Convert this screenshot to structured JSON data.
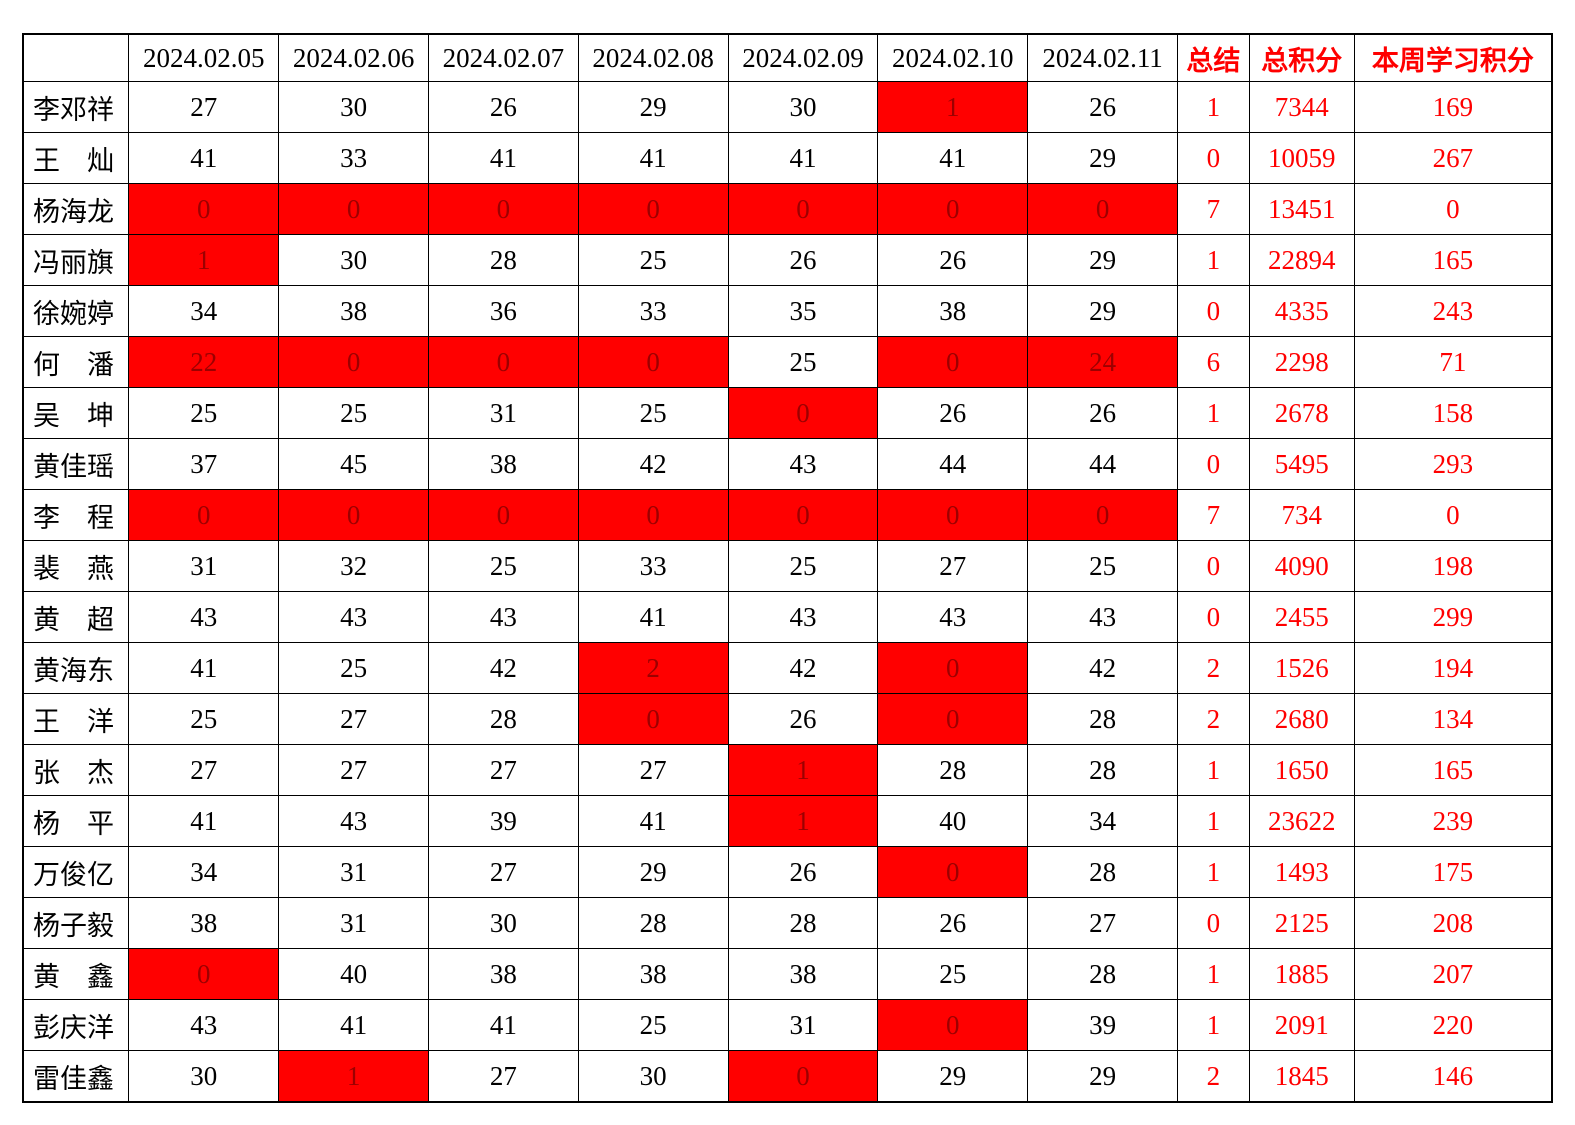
{
  "colors": {
    "highlight_background": "#ff0000",
    "highlight_text": "#9c0000",
    "accent_text": "#ff0000",
    "grid_line": "#000000",
    "page_background": "#ffffff"
  },
  "table": {
    "corner_label": "",
    "date_columns": [
      "2024.02.05",
      "2024.02.06",
      "2024.02.07",
      "2024.02.08",
      "2024.02.09",
      "2024.02.10",
      "2024.02.11"
    ],
    "summary_columns": [
      "总结",
      "总积分",
      "本周学习积分"
    ],
    "rows": [
      {
        "name": "李邓祥",
        "days": [
          {
            "v": "27"
          },
          {
            "v": "30"
          },
          {
            "v": "26"
          },
          {
            "v": "29"
          },
          {
            "v": "30"
          },
          {
            "v": "1",
            "red": true
          },
          {
            "v": "26"
          }
        ],
        "summary": "1",
        "total": "7344",
        "week": "169"
      },
      {
        "name": "王　灿",
        "days": [
          {
            "v": "41"
          },
          {
            "v": "33"
          },
          {
            "v": "41"
          },
          {
            "v": "41"
          },
          {
            "v": "41"
          },
          {
            "v": "41"
          },
          {
            "v": "29"
          }
        ],
        "summary": "0",
        "total": "10059",
        "week": "267"
      },
      {
        "name": "杨海龙",
        "days": [
          {
            "v": "0",
            "red": true
          },
          {
            "v": "0",
            "red": true
          },
          {
            "v": "0",
            "red": true
          },
          {
            "v": "0",
            "red": true
          },
          {
            "v": "0",
            "red": true
          },
          {
            "v": "0",
            "red": true
          },
          {
            "v": "0",
            "red": true
          }
        ],
        "summary": "7",
        "total": "13451",
        "week": "0"
      },
      {
        "name": "冯丽旗",
        "days": [
          {
            "v": "1",
            "red": true
          },
          {
            "v": "30"
          },
          {
            "v": "28"
          },
          {
            "v": "25"
          },
          {
            "v": "26"
          },
          {
            "v": "26"
          },
          {
            "v": "29"
          }
        ],
        "summary": "1",
        "total": "22894",
        "week": "165"
      },
      {
        "name": "徐婉婷",
        "days": [
          {
            "v": "34"
          },
          {
            "v": "38"
          },
          {
            "v": "36"
          },
          {
            "v": "33"
          },
          {
            "v": "35"
          },
          {
            "v": "38"
          },
          {
            "v": "29"
          }
        ],
        "summary": "0",
        "total": "4335",
        "week": "243"
      },
      {
        "name": "何　潘",
        "days": [
          {
            "v": "22",
            "red": true
          },
          {
            "v": "0",
            "red": true
          },
          {
            "v": "0",
            "red": true
          },
          {
            "v": "0",
            "red": true
          },
          {
            "v": "25"
          },
          {
            "v": "0",
            "red": true
          },
          {
            "v": "24",
            "red": true
          }
        ],
        "summary": "6",
        "total": "2298",
        "week": "71"
      },
      {
        "name": "吴　坤",
        "days": [
          {
            "v": "25"
          },
          {
            "v": "25"
          },
          {
            "v": "31"
          },
          {
            "v": "25"
          },
          {
            "v": "0",
            "red": true
          },
          {
            "v": "26"
          },
          {
            "v": "26"
          }
        ],
        "summary": "1",
        "total": "2678",
        "week": "158"
      },
      {
        "name": "黄佳瑶",
        "days": [
          {
            "v": "37"
          },
          {
            "v": "45"
          },
          {
            "v": "38"
          },
          {
            "v": "42"
          },
          {
            "v": "43"
          },
          {
            "v": "44"
          },
          {
            "v": "44"
          }
        ],
        "summary": "0",
        "total": "5495",
        "week": "293"
      },
      {
        "name": "李　程",
        "days": [
          {
            "v": "0",
            "red": true
          },
          {
            "v": "0",
            "red": true
          },
          {
            "v": "0",
            "red": true
          },
          {
            "v": "0",
            "red": true
          },
          {
            "v": "0",
            "red": true
          },
          {
            "v": "0",
            "red": true
          },
          {
            "v": "0",
            "red": true
          }
        ],
        "summary": "7",
        "total": "734",
        "week": "0"
      },
      {
        "name": "裴　燕",
        "days": [
          {
            "v": "31"
          },
          {
            "v": "32"
          },
          {
            "v": "25"
          },
          {
            "v": "33"
          },
          {
            "v": "25"
          },
          {
            "v": "27"
          },
          {
            "v": "25"
          }
        ],
        "summary": "0",
        "total": "4090",
        "week": "198"
      },
      {
        "name": "黄　超",
        "days": [
          {
            "v": "43"
          },
          {
            "v": "43"
          },
          {
            "v": "43"
          },
          {
            "v": "41"
          },
          {
            "v": "43"
          },
          {
            "v": "43"
          },
          {
            "v": "43"
          }
        ],
        "summary": "0",
        "total": "2455",
        "week": "299"
      },
      {
        "name": "黄海东",
        "days": [
          {
            "v": "41"
          },
          {
            "v": "25"
          },
          {
            "v": "42"
          },
          {
            "v": "2",
            "red": true
          },
          {
            "v": "42"
          },
          {
            "v": "0",
            "red": true
          },
          {
            "v": "42"
          }
        ],
        "summary": "2",
        "total": "1526",
        "week": "194"
      },
      {
        "name": "王　洋",
        "days": [
          {
            "v": "25"
          },
          {
            "v": "27"
          },
          {
            "v": "28"
          },
          {
            "v": "0",
            "red": true
          },
          {
            "v": "26"
          },
          {
            "v": "0",
            "red": true
          },
          {
            "v": "28"
          }
        ],
        "summary": "2",
        "total": "2680",
        "week": "134"
      },
      {
        "name": "张　杰",
        "days": [
          {
            "v": "27"
          },
          {
            "v": "27"
          },
          {
            "v": "27"
          },
          {
            "v": "27"
          },
          {
            "v": "1",
            "red": true
          },
          {
            "v": "28"
          },
          {
            "v": "28"
          }
        ],
        "summary": "1",
        "total": "1650",
        "week": "165"
      },
      {
        "name": "杨　平",
        "days": [
          {
            "v": "41"
          },
          {
            "v": "43"
          },
          {
            "v": "39"
          },
          {
            "v": "41"
          },
          {
            "v": "1",
            "red": true
          },
          {
            "v": "40"
          },
          {
            "v": "34"
          }
        ],
        "summary": "1",
        "total": "23622",
        "week": "239"
      },
      {
        "name": "万俊亿",
        "days": [
          {
            "v": "34"
          },
          {
            "v": "31"
          },
          {
            "v": "27"
          },
          {
            "v": "29"
          },
          {
            "v": "26"
          },
          {
            "v": "0",
            "red": true
          },
          {
            "v": "28"
          }
        ],
        "summary": "1",
        "total": "1493",
        "week": "175"
      },
      {
        "name": "杨子毅",
        "days": [
          {
            "v": "38"
          },
          {
            "v": "31"
          },
          {
            "v": "30"
          },
          {
            "v": "28"
          },
          {
            "v": "28"
          },
          {
            "v": "26"
          },
          {
            "v": "27"
          }
        ],
        "summary": "0",
        "total": "2125",
        "week": "208"
      },
      {
        "name": "黄　鑫",
        "days": [
          {
            "v": "0",
            "red": true
          },
          {
            "v": "40"
          },
          {
            "v": "38"
          },
          {
            "v": "38"
          },
          {
            "v": "38"
          },
          {
            "v": "25"
          },
          {
            "v": "28"
          }
        ],
        "summary": "1",
        "total": "1885",
        "week": "207"
      },
      {
        "name": "彭庆洋",
        "days": [
          {
            "v": "43"
          },
          {
            "v": "41"
          },
          {
            "v": "41"
          },
          {
            "v": "25"
          },
          {
            "v": "31"
          },
          {
            "v": "0",
            "red": true
          },
          {
            "v": "39"
          }
        ],
        "summary": "1",
        "total": "2091",
        "week": "220"
      },
      {
        "name": "雷佳鑫",
        "days": [
          {
            "v": "30"
          },
          {
            "v": "1",
            "red": true
          },
          {
            "v": "27"
          },
          {
            "v": "30"
          },
          {
            "v": "0",
            "red": true
          },
          {
            "v": "29"
          },
          {
            "v": "29"
          }
        ],
        "summary": "2",
        "total": "1845",
        "week": "146"
      }
    ]
  }
}
